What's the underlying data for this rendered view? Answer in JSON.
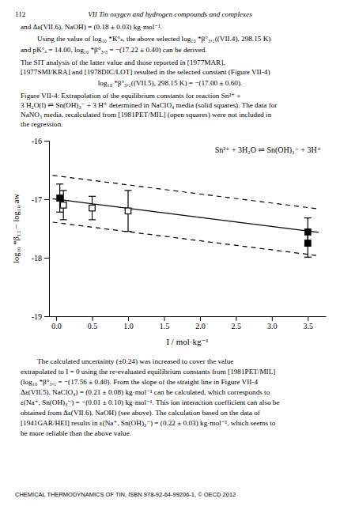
{
  "chart_data": {
    "type": "scatter",
    "x_label": "I / mol·kg⁻¹",
    "y_label": "log₁₀ *β₁₃ − log₁₀ aw",
    "annotations": [
      "Sn²⁺ + 3H₂O ⇌ Sn(OH)₃⁻ + 3H⁺"
    ],
    "grid": false,
    "xlim": [
      -0.1,
      3.75
    ],
    "ylim": [
      -19.0,
      -16.0
    ],
    "xticks": [
      {
        "value": 0.0,
        "label": "0.0"
      },
      0.5,
      {
        "value": 1.0,
        "label": "1.0"
      },
      1.5,
      {
        "value": 2.0,
        "label": "2.0"
      },
      2.5,
      {
        "value": 3.0,
        "label": "3.0"
      },
      3.5
    ],
    "yticks": [
      -19,
      -18,
      -17,
      -16
    ],
    "series": [
      {
        "type": "line",
        "color": "#000000",
        "line_style": "solid",
        "x": [
          -0.05,
          3.65
        ],
        "values": [
          -16.99225,
          -17.56575
        ]
      },
      {
        "type": "line",
        "color": "#000000",
        "line_style": "dashed",
        "x": [
          -0.05,
          3.65
        ],
        "values": [
          -16.59225,
          -17.16575
        ]
      },
      {
        "type": "line",
        "color": "#000000",
        "line_style": "dashed",
        "x": [
          -0.05,
          3.65
        ],
        "values": [
          -17.39225,
          -17.96575
        ]
      },
      {
        "type": "scatter",
        "color": "#000000",
        "marker": "square",
        "x": [
          0.05,
          3.5,
          3.5
        ],
        "values": [
          -16.98,
          -17.56,
          -17.75
        ],
        "errors": [
          0.24,
          0.24,
          0.24
        ]
      },
      {
        "type": "scatter",
        "color": "#000000",
        "marker": "square-open",
        "x": [
          0.1,
          0.5,
          1.0
        ],
        "values": [
          -17.1,
          -17.15,
          -17.2
        ],
        "errors": [
          0.25,
          0.2,
          0.35
        ]
      }
    ]
  },
  "page": {
    "header": [
      "112",
      "VII Tin oxygen and hydrogen compounds and complexes"
    ],
    "text_above": [
      "and Δε(VII.6), NaOH) = (0.18 ± 0.03) kg·mol⁻¹.",
      "Using the value of log₁₀ *K°ₛ, the above selected  log₁₀ *β°₃,₁((VII.4), 298.15 K)",
      "and pK°ₐ = 14.00,  log₁₀ *β°₃,₃ = −(17.22 ± 0.40) can be derived.",
      "The SIT analysis of the latter value and those reported in [1977MAR],",
      "[1977SMI/KRA] and [1978DIC/LOT] resulted in the selected constant (Figure VII-4)",
      "log₁₀ *β°₃,₁((VII.5), 298.15 K) = −(17.00 ± 0.60).",
      "Figure VII-4: Extrapolation of the equilibrium constants for reaction Sn²⁺ +",
      "3 H₂O(l) ⇌ Sn(OH)₃⁻ + 3 H⁺ determined in NaClO₄ media (solid squares). The data for",
      "NaNO₃ media, recalculated from [1981PET/MIL] (open squares) were not included in",
      "the regression."
    ],
    "text_below": [
      "The calculated uncertainty (±0.24) was increased to cover the value",
      "extrapolated to I = 0 using the re-evaluated equilibrium constants from [1981PET/MIL]",
      "(log₁₀ *β°₃,₁ = −(17.56 ± 0.40). From the slope of the straight line in Figure VII-4",
      "Δε(VII.5), NaClO₄) = (0.21 ± 0.08) kg·mol⁻¹ can be calculated, which corresponds to",
      "ε(Na⁺, Sn(OH)₃⁻) = −(0.01 ± 0.10) kg·mol⁻¹. This ion interaction coefficient can also be",
      "obtained from Δε(VII.6), NaOH) (see above). The calculation based on the data of",
      "[1941GAR/HEI] results in ε(Na⁺, Sn(OH)₃⁻) = (0.22 ± 0.03) kg·mol⁻¹, which seems to",
      "be more reliable than the above value."
    ],
    "footer": "CHEMICAL THERMODYNAMICS OF TIN, ISBN 978-92-64-99206-1, © OECD 2012"
  }
}
